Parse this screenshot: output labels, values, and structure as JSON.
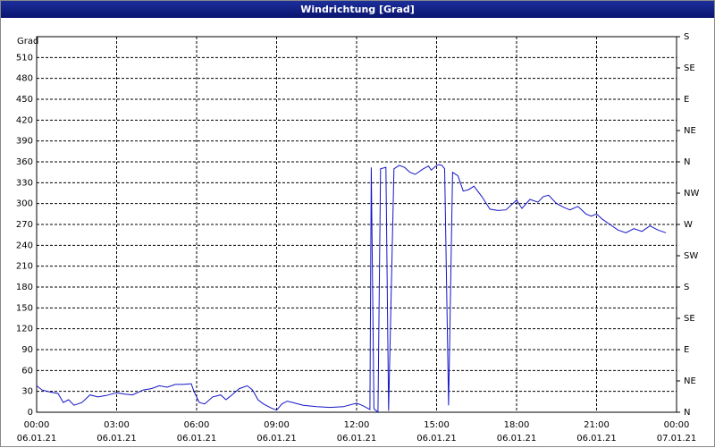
{
  "chart_data": {
    "type": "line",
    "title": "Windrichtung [Grad]",
    "y_label": "Grad",
    "color": "#1414c8",
    "grid": true,
    "x": [
      0.0,
      0.2,
      0.5,
      0.8,
      1.0,
      1.2,
      1.4,
      1.7,
      2.0,
      2.3,
      2.6,
      3.0,
      3.3,
      3.6,
      4.0,
      4.3,
      4.6,
      4.9,
      5.2,
      5.5,
      5.8,
      5.9,
      6.1,
      6.3,
      6.6,
      6.9,
      7.1,
      7.3,
      7.6,
      7.9,
      8.1,
      8.3,
      8.5,
      8.8,
      9.0,
      9.2,
      9.4,
      9.6,
      10.0,
      10.5,
      11.0,
      11.5,
      12.0,
      12.2,
      12.4,
      12.5,
      12.55,
      12.65,
      12.8,
      12.9,
      13.1,
      13.2,
      13.4,
      13.6,
      13.8,
      14.0,
      14.2,
      14.5,
      14.7,
      14.8,
      15.0,
      15.1,
      15.2,
      15.3,
      15.45,
      15.6,
      15.8,
      16.0,
      16.2,
      16.4,
      16.7,
      17.0,
      17.3,
      17.6,
      18.0,
      18.2,
      18.5,
      18.8,
      19.0,
      19.2,
      19.5,
      19.8,
      20.0,
      20.3,
      20.6,
      20.8,
      21.0,
      21.2,
      21.5,
      21.8,
      22.1,
      22.4,
      22.7,
      23.0,
      23.3,
      23.6
    ],
    "values": [
      38,
      32,
      29,
      27,
      14,
      18,
      10,
      14,
      25,
      22,
      24,
      28,
      26,
      25,
      32,
      34,
      38,
      36,
      40,
      40,
      41,
      30,
      14,
      12,
      22,
      25,
      18,
      24,
      34,
      38,
      32,
      18,
      12,
      6,
      3,
      12,
      16,
      14,
      10,
      8,
      7,
      8,
      13,
      10,
      6,
      4,
      352,
      5,
      0,
      350,
      352,
      2,
      350,
      355,
      352,
      345,
      342,
      350,
      354,
      348,
      355,
      356,
      355,
      350,
      10,
      345,
      340,
      318,
      320,
      325,
      310,
      292,
      290,
      291,
      305,
      293,
      306,
      302,
      310,
      312,
      300,
      294,
      291,
      296,
      285,
      282,
      285,
      278,
      270,
      262,
      258,
      264,
      260,
      268,
      262,
      258
    ],
    "xlim": [
      0,
      24
    ],
    "xticks": [
      {
        "value": 0,
        "label": "00:00"
      },
      {
        "value": 3,
        "label": "03:00"
      },
      {
        "value": 6,
        "label": "06:00"
      },
      {
        "value": 9,
        "label": "09:00"
      },
      {
        "value": 12,
        "label": "12:00"
      },
      {
        "value": 15,
        "label": "15:00"
      },
      {
        "value": 18,
        "label": "18:00"
      },
      {
        "value": 21,
        "label": "21:00"
      },
      {
        "value": 24,
        "label": "00:00"
      }
    ],
    "xtick_dates": [
      "06.01.21",
      "06.01.21",
      "06.01.21",
      "06.01.21",
      "06.01.21",
      "06.01.21",
      "06.01.21",
      "06.01.21",
      "07.01.21"
    ],
    "ylim": [
      0,
      540
    ],
    "yticks": [
      0,
      30,
      60,
      90,
      120,
      150,
      180,
      210,
      240,
      270,
      300,
      330,
      360,
      390,
      420,
      450,
      480,
      510
    ],
    "y2lim": [
      0,
      540
    ],
    "y2ticks": [
      {
        "value": 0,
        "label": "N"
      },
      {
        "value": 45,
        "label": "NE"
      },
      {
        "value": 90,
        "label": "E"
      },
      {
        "value": 135,
        "label": "SE"
      },
      {
        "value": 180,
        "label": "S"
      },
      {
        "value": 225,
        "label": "SW"
      },
      {
        "value": 270,
        "label": "W"
      },
      {
        "value": 315,
        "label": "NW"
      },
      {
        "value": 360,
        "label": "N"
      },
      {
        "value": 405,
        "label": "NE"
      },
      {
        "value": 450,
        "label": "E"
      },
      {
        "value": 495,
        "label": "SE"
      },
      {
        "value": 540,
        "label": "S"
      }
    ]
  }
}
